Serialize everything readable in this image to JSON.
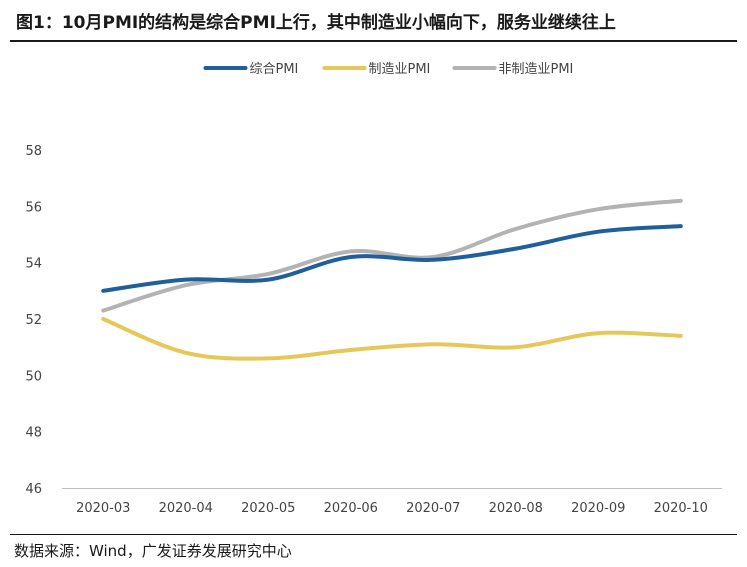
{
  "title": "图1：10月PMI的结构是综合PMI上行，其中制造业小幅向下，服务业继续往上",
  "source": "数据来源：Wind，广发证券发展研究中心",
  "chart_data": {
    "type": "line",
    "title": "图1：10月PMI的结构是综合PMI上行，其中制造业小幅向下，服务业继续往上",
    "xlabel": "",
    "ylabel": "",
    "categories": [
      "2020-03",
      "2020-04",
      "2020-05",
      "2020-06",
      "2020-07",
      "2020-08",
      "2020-09",
      "2020-10"
    ],
    "yticks": [
      46,
      48,
      50,
      52,
      54,
      56,
      58
    ],
    "ylim": [
      46,
      58
    ],
    "grid": false,
    "legend_position": "top-center",
    "series": [
      {
        "name": "综合PMI",
        "color": "#1f5f9c",
        "values": [
          53.0,
          53.4,
          53.4,
          54.2,
          54.1,
          54.5,
          55.1,
          55.3
        ]
      },
      {
        "name": "制造业PMI",
        "color": "#e6c75a",
        "values": [
          52.0,
          50.8,
          50.6,
          50.9,
          51.1,
          51.0,
          51.5,
          51.4
        ]
      },
      {
        "name": "非制造业PMI",
        "color": "#b3b3b3",
        "values": [
          52.3,
          53.2,
          53.6,
          54.4,
          54.2,
          55.2,
          55.9,
          56.2
        ]
      }
    ]
  }
}
